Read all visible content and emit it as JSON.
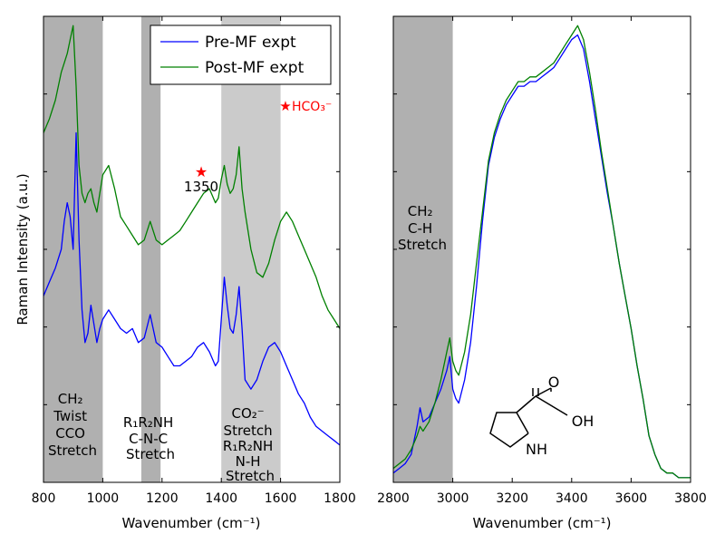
{
  "chart_data": [
    {
      "type": "line",
      "title": "",
      "xlabel": "Wavenumber (cm⁻¹)",
      "ylabel": "Raman Intensity (a.u.)",
      "xlim": [
        800,
        1800
      ],
      "ylim": [
        0,
        1
      ],
      "xticks": [
        "800",
        "1000",
        "1200",
        "1400",
        "1600",
        "1800"
      ],
      "grid": false,
      "legend": {
        "placement": "top-right",
        "entries": [
          "Pre-MF expt",
          "Post-MF expt"
        ]
      },
      "shaded_regions": [
        {
          "from": 800,
          "to": 1000,
          "tone": "dark",
          "label_lines": [
            "CH₂",
            "Twist",
            "CCO",
            "Stretch"
          ]
        },
        {
          "from": 1130,
          "to": 1195,
          "tone": "dark",
          "label_lines": [
            "R₁R₂NH",
            "C-N-C",
            "Stretch"
          ]
        },
        {
          "from": 1400,
          "to": 1600,
          "tone": "light",
          "label_lines": [
            "CO₂⁻",
            "Stretch",
            "R₁R₂NH",
            "N-H",
            "Stretch"
          ]
        }
      ],
      "annotations": [
        {
          "text": "1350",
          "x": 1350,
          "marker": "star",
          "color": "#ff0000"
        },
        {
          "text": "HCO₃⁻",
          "x": 1610,
          "marker": "star",
          "color": "#ff0000"
        }
      ],
      "series": [
        {
          "name": "Pre-MF expt",
          "color": "#0000ff",
          "x": [
            800,
            820,
            840,
            860,
            870,
            880,
            890,
            900,
            910,
            920,
            930,
            940,
            950,
            960,
            970,
            980,
            990,
            1000,
            1020,
            1040,
            1060,
            1080,
            1100,
            1120,
            1140,
            1160,
            1170,
            1180,
            1200,
            1220,
            1240,
            1260,
            1280,
            1300,
            1320,
            1340,
            1360,
            1380,
            1390,
            1400,
            1410,
            1420,
            1430,
            1440,
            1450,
            1460,
            1470,
            1480,
            1500,
            1520,
            1540,
            1560,
            1580,
            1600,
            1620,
            1640,
            1660,
            1680,
            1700,
            1720,
            1740,
            1760,
            1780,
            1800
          ],
          "values": [
            0.4,
            0.43,
            0.46,
            0.5,
            0.56,
            0.6,
            0.57,
            0.5,
            0.75,
            0.52,
            0.37,
            0.3,
            0.32,
            0.38,
            0.34,
            0.3,
            0.33,
            0.35,
            0.37,
            0.35,
            0.33,
            0.32,
            0.33,
            0.3,
            0.31,
            0.36,
            0.33,
            0.3,
            0.29,
            0.27,
            0.25,
            0.25,
            0.26,
            0.27,
            0.29,
            0.3,
            0.28,
            0.25,
            0.26,
            0.35,
            0.44,
            0.38,
            0.33,
            0.32,
            0.36,
            0.42,
            0.33,
            0.22,
            0.2,
            0.22,
            0.26,
            0.29,
            0.3,
            0.28,
            0.25,
            0.22,
            0.19,
            0.17,
            0.14,
            0.12,
            0.11,
            0.1,
            0.09,
            0.08
          ]
        },
        {
          "name": "Post-MF expt",
          "color": "#008000",
          "x": [
            800,
            820,
            840,
            860,
            870,
            880,
            890,
            900,
            910,
            920,
            930,
            940,
            950,
            960,
            970,
            980,
            990,
            1000,
            1020,
            1040,
            1060,
            1080,
            1100,
            1120,
            1140,
            1160,
            1170,
            1180,
            1200,
            1220,
            1240,
            1260,
            1280,
            1300,
            1320,
            1340,
            1360,
            1380,
            1390,
            1400,
            1410,
            1420,
            1430,
            1440,
            1450,
            1460,
            1470,
            1480,
            1500,
            1520,
            1540,
            1560,
            1580,
            1600,
            1620,
            1640,
            1660,
            1680,
            1700,
            1720,
            1740,
            1760,
            1780,
            1800
          ],
          "values": [
            0.75,
            0.78,
            0.82,
            0.88,
            0.9,
            0.92,
            0.95,
            0.98,
            0.85,
            0.68,
            0.62,
            0.6,
            0.62,
            0.63,
            0.6,
            0.58,
            0.62,
            0.66,
            0.68,
            0.63,
            0.57,
            0.55,
            0.53,
            0.51,
            0.52,
            0.56,
            0.54,
            0.52,
            0.51,
            0.52,
            0.53,
            0.54,
            0.56,
            0.58,
            0.6,
            0.62,
            0.63,
            0.6,
            0.61,
            0.65,
            0.68,
            0.64,
            0.62,
            0.63,
            0.66,
            0.72,
            0.63,
            0.58,
            0.5,
            0.45,
            0.44,
            0.47,
            0.52,
            0.56,
            0.58,
            0.56,
            0.53,
            0.5,
            0.47,
            0.44,
            0.4,
            0.37,
            0.35,
            0.33
          ]
        }
      ]
    },
    {
      "type": "line",
      "title": "",
      "xlabel": "Wavenumber (cm⁻¹)",
      "ylabel": "",
      "xlim": [
        2800,
        3800
      ],
      "ylim": [
        0,
        1
      ],
      "xticks": [
        "2800",
        "3000",
        "3200",
        "3400",
        "3600",
        "3800"
      ],
      "grid": false,
      "shaded_regions": [
        {
          "from": 2800,
          "to": 3000,
          "tone": "dark",
          "label_lines": [
            "CH₂",
            "C-H",
            "Stretch"
          ]
        }
      ],
      "molecule_atoms": [
        "O",
        "OH",
        "NH"
      ],
      "series": [
        {
          "name": "Pre-MF expt",
          "color": "#0000ff",
          "x": [
            2800,
            2820,
            2840,
            2860,
            2880,
            2890,
            2900,
            2920,
            2940,
            2960,
            2980,
            2990,
            3000,
            3010,
            3020,
            3040,
            3060,
            3080,
            3100,
            3120,
            3140,
            3160,
            3180,
            3200,
            3220,
            3240,
            3260,
            3280,
            3300,
            3320,
            3340,
            3360,
            3380,
            3400,
            3420,
            3440,
            3460,
            3480,
            3500,
            3520,
            3540,
            3560,
            3580,
            3600,
            3620,
            3640,
            3660,
            3680,
            3700,
            3720,
            3740,
            3760,
            3780,
            3800
          ],
          "values": [
            0.02,
            0.03,
            0.04,
            0.06,
            0.12,
            0.16,
            0.13,
            0.14,
            0.17,
            0.2,
            0.24,
            0.27,
            0.2,
            0.18,
            0.17,
            0.22,
            0.3,
            0.42,
            0.56,
            0.68,
            0.74,
            0.78,
            0.81,
            0.83,
            0.85,
            0.85,
            0.86,
            0.86,
            0.87,
            0.88,
            0.89,
            0.91,
            0.93,
            0.95,
            0.96,
            0.93,
            0.86,
            0.78,
            0.7,
            0.62,
            0.55,
            0.47,
            0.4,
            0.33,
            0.25,
            0.18,
            0.1,
            0.06,
            0.03,
            0.02,
            0.02,
            0.01,
            0.01,
            0.01
          ]
        },
        {
          "name": "Post-MF expt",
          "color": "#008000",
          "x": [
            2800,
            2820,
            2840,
            2860,
            2880,
            2890,
            2900,
            2920,
            2940,
            2960,
            2980,
            2990,
            3000,
            3010,
            3020,
            3040,
            3060,
            3080,
            3100,
            3120,
            3140,
            3160,
            3180,
            3200,
            3220,
            3240,
            3260,
            3280,
            3300,
            3320,
            3340,
            3360,
            3380,
            3400,
            3420,
            3440,
            3460,
            3480,
            3500,
            3520,
            3540,
            3560,
            3580,
            3600,
            3620,
            3640,
            3660,
            3680,
            3700,
            3720,
            3740,
            3760,
            3780,
            3800
          ],
          "values": [
            0.03,
            0.04,
            0.05,
            0.07,
            0.1,
            0.12,
            0.11,
            0.13,
            0.17,
            0.22,
            0.28,
            0.31,
            0.26,
            0.24,
            0.23,
            0.28,
            0.36,
            0.47,
            0.58,
            0.69,
            0.75,
            0.79,
            0.82,
            0.84,
            0.86,
            0.86,
            0.87,
            0.87,
            0.88,
            0.89,
            0.9,
            0.92,
            0.94,
            0.96,
            0.98,
            0.95,
            0.88,
            0.8,
            0.71,
            0.63,
            0.55,
            0.47,
            0.4,
            0.33,
            0.25,
            0.18,
            0.1,
            0.06,
            0.03,
            0.02,
            0.02,
            0.01,
            0.01,
            0.01
          ]
        }
      ]
    }
  ]
}
